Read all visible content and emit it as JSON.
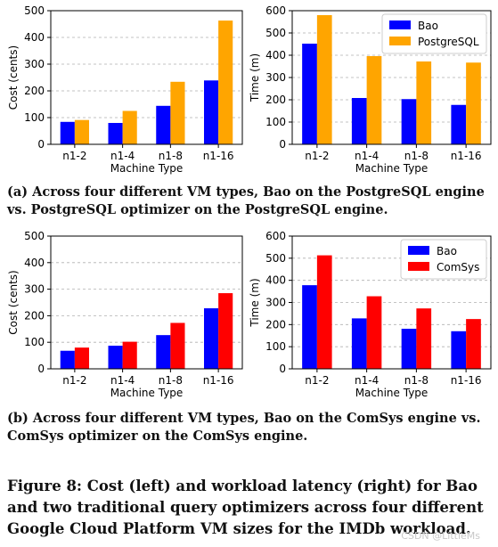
{
  "colors": {
    "bao": "#0000ff",
    "postgres": "#ffa500",
    "comsys": "#ff0000"
  },
  "captions": {
    "a": "(a) Across four different VM types, Bao on the PostgreSQL engine vs. PostgreSQL optimizer on the PostgreSQL engine.",
    "b": "(b) Across four different VM types, Bao on the ComSys engine vs. ComSys optimizer on the ComSys engine.",
    "figure": "Figure 8: Cost (left) and workload latency (right) for Bao and two traditional query optimizers across four different Google Cloud Platform VM sizes for the IMDb workload."
  },
  "watermark": "CSDN @LittleMs",
  "chart_data": [
    {
      "type": "bar",
      "categories": [
        "n1-2",
        "n1-4",
        "n1-8",
        "n1-16"
      ],
      "series": [
        {
          "name": "Bao",
          "values": [
            84,
            80,
            144,
            239
          ],
          "color": "#0000ff"
        },
        {
          "name": "PostgreSQL",
          "values": [
            91,
            125,
            234,
            463
          ],
          "color": "#ffa500"
        }
      ],
      "xlabel": "Machine Type",
      "ylabel": "Cost (cents)",
      "ylim": [
        0,
        500
      ],
      "yticks": [
        0,
        100,
        200,
        300,
        400,
        500
      ],
      "legend": false,
      "grid": true
    },
    {
      "type": "bar",
      "categories": [
        "n1-2",
        "n1-4",
        "n1-8",
        "n1-16"
      ],
      "series": [
        {
          "name": "Bao",
          "values": [
            452,
            208,
            203,
            177
          ],
          "color": "#0000ff"
        },
        {
          "name": "PostgreSQL",
          "values": [
            580,
            396,
            372,
            367
          ],
          "color": "#ffa500"
        }
      ],
      "xlabel": "Machine Type",
      "ylabel": "Time (m)",
      "ylim": [
        0,
        600
      ],
      "yticks": [
        0,
        100,
        200,
        300,
        400,
        500,
        600
      ],
      "legend": "top-right",
      "grid": true
    },
    {
      "type": "bar",
      "categories": [
        "n1-2",
        "n1-4",
        "n1-8",
        "n1-16"
      ],
      "series": [
        {
          "name": "Bao",
          "values": [
            68,
            87,
            127,
            228
          ],
          "color": "#0000ff"
        },
        {
          "name": "ComSys",
          "values": [
            80,
            102,
            173,
            285
          ],
          "color": "#ff0000"
        }
      ],
      "xlabel": "Machine Type",
      "ylabel": "Cost (cents)",
      "ylim": [
        0,
        500
      ],
      "yticks": [
        0,
        100,
        200,
        300,
        400,
        500
      ],
      "legend": false,
      "grid": true
    },
    {
      "type": "bar",
      "categories": [
        "n1-2",
        "n1-4",
        "n1-8",
        "n1-16"
      ],
      "series": [
        {
          "name": "Bao",
          "values": [
            378,
            228,
            181,
            170
          ],
          "color": "#0000ff"
        },
        {
          "name": "ComSys",
          "values": [
            513,
            328,
            273,
            225
          ],
          "color": "#ff0000"
        }
      ],
      "xlabel": "Machine Type",
      "ylabel": "Time (m)",
      "ylim": [
        0,
        600
      ],
      "yticks": [
        0,
        100,
        200,
        300,
        400,
        500,
        600
      ],
      "legend": "top-right",
      "grid": true
    }
  ]
}
